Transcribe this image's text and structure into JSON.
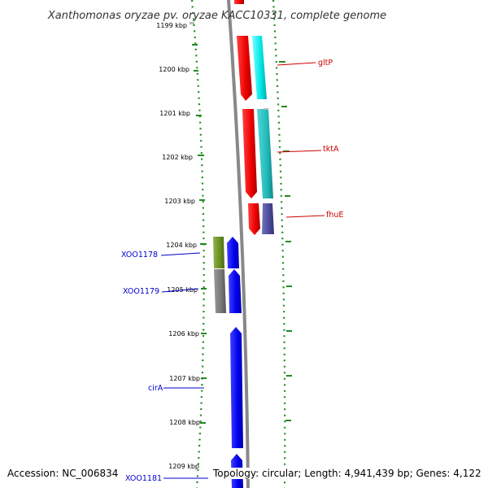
{
  "title": "Xanthomonas oryzae pv. oryzae KACC10331, complete genome",
  "ticks": [
    "1199 kbp",
    "1200 kbp",
    "1201 kbp",
    "1202 kbp",
    "1203 kbp",
    "1204 kbp",
    "1205 kbp",
    "1206 kbp",
    "1207 kbp",
    "1208 kbp",
    "1209 kbp"
  ],
  "genes_right": [
    {
      "name": "gltP",
      "color": "#cc0000"
    },
    {
      "name": "tktA",
      "color": "#cc0000"
    },
    {
      "name": "fhuE",
      "color": "#cc0000"
    }
  ],
  "genes_left": [
    {
      "name": "XOO1178",
      "color": "#0000cc"
    },
    {
      "name": "XOO1179",
      "color": "#0000cc"
    },
    {
      "name": "cirA",
      "color": "#0000cc"
    },
    {
      "name": "XOO1181",
      "color": "#0000cc"
    }
  ],
  "colors": {
    "cds_forward": "#ff0000",
    "cds_reverse": "#0000ff",
    "feature_cyan": "#00e5e5",
    "feature_teal": "#22bbbb",
    "feature_purple": "#4a4a99",
    "feature_olive": "#6b8e23",
    "feature_gray": "#777777",
    "backbone": "#888888",
    "gc_dots": "#228b22"
  },
  "footer": {
    "accession": "Accession: NC_006834",
    "topology": "Topology: circular; Length: 4,941,439 bp; Genes: 4,122"
  }
}
